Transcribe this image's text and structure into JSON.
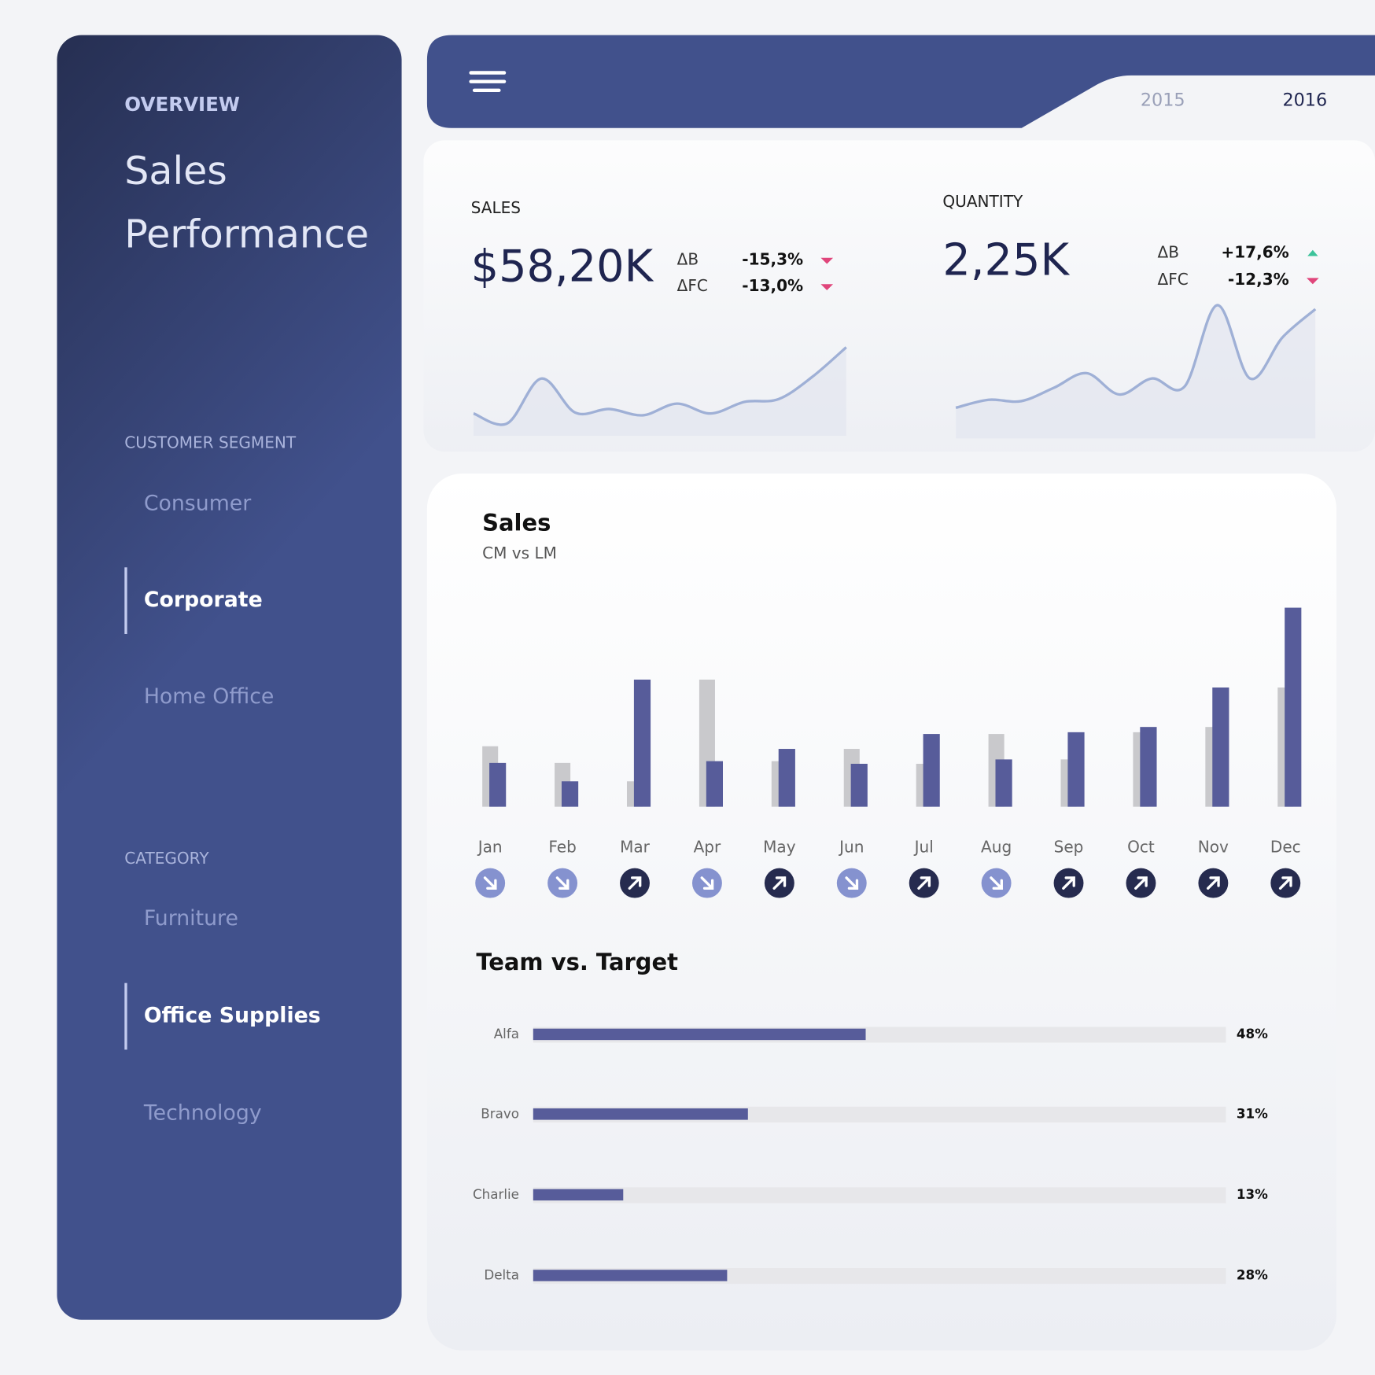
{
  "sidebar": {
    "overview": "OVERVIEW",
    "title": [
      "Sales",
      "Performance"
    ],
    "segment": {
      "heading": "CUSTOMER SEGMENT",
      "items": [
        {
          "label": "Consumer",
          "selected": false
        },
        {
          "label": "Corporate",
          "selected": true
        },
        {
          "label": "Home Office",
          "selected": false
        }
      ]
    },
    "category": {
      "heading": "CATEGORY",
      "items": [
        {
          "label": "Furniture",
          "selected": false
        },
        {
          "label": "Office Supplies",
          "selected": true
        },
        {
          "label": "Technology",
          "selected": false
        }
      ]
    }
  },
  "header": {
    "years": [
      {
        "label": "2015",
        "selected": false
      },
      {
        "label": "2016",
        "selected": true
      }
    ]
  },
  "kpis": [
    {
      "label": "SALES",
      "value": "$58,20K",
      "deltas": [
        {
          "label": "ΔB",
          "value": "-15,3%",
          "trend": "down"
        },
        {
          "label": "ΔFC",
          "value": "-13,0%",
          "trend": "down"
        }
      ]
    },
    {
      "label": "QUANTITY",
      "value": "2,25K",
      "deltas": [
        {
          "label": "ΔB",
          "value": "+17,6%",
          "trend": "up"
        },
        {
          "label": "ΔFC",
          "value": "-12,3%",
          "trend": "down"
        }
      ]
    }
  ],
  "chart_data": [
    {
      "type": "area",
      "color": "#9fb0d6",
      "ylim": [
        0,
        100
      ],
      "values": [
        25,
        14,
        64,
        26,
        30,
        23,
        36,
        25,
        38,
        41,
        66,
        99
      ]
    },
    {
      "type": "area",
      "color": "#9fb0d6",
      "ylim": [
        0,
        100
      ],
      "values": [
        23,
        29,
        28,
        38,
        49,
        33,
        45,
        39,
        100,
        45,
        76,
        97
      ]
    },
    {
      "type": "bar",
      "title": "Sales",
      "subtitle": "CM vs LM",
      "ylim": [
        0,
        240
      ],
      "categories": [
        "Jan",
        "Feb",
        "Mar",
        "Apr",
        "May",
        "Jun",
        "Jul",
        "Aug",
        "Sep",
        "Oct",
        "Nov",
        "Dec"
      ],
      "series": [
        {
          "color": "#c9c9cc",
          "values": [
            69,
            50,
            29,
            145,
            52,
            66,
            49,
            83,
            54,
            85,
            91,
            136
          ]
        },
        {
          "color": "#575c9a",
          "values": [
            50,
            29,
            145,
            52,
            66,
            49,
            83,
            54,
            85,
            91,
            136,
            227
          ]
        }
      ]
    },
    {
      "type": "hbar",
      "title": "Team vs. Target",
      "xlim": [
        0,
        100
      ],
      "color": "#575c9a",
      "categories": [
        "Alfa",
        "Bravo",
        "Charlie",
        "Delta"
      ],
      "values": [
        48,
        31,
        13,
        28
      ],
      "value_labels": [
        "48%",
        "31%",
        "13%",
        "28%"
      ]
    }
  ]
}
